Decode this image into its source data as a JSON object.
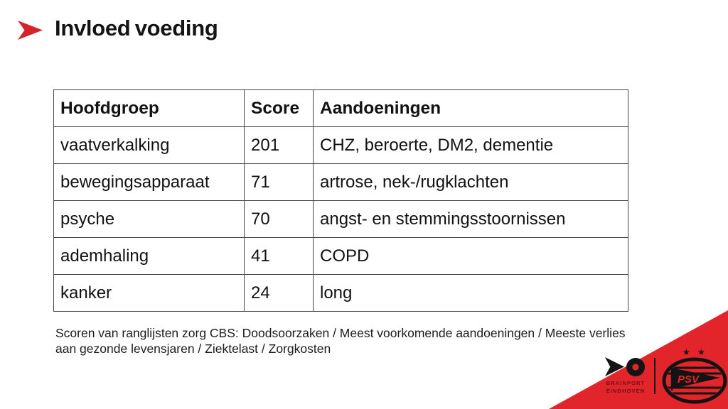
{
  "slide": {
    "title": "Invloed voeding"
  },
  "table": {
    "headers": [
      "Hoofdgroep",
      "Score",
      "Aandoeningen"
    ],
    "rows": [
      [
        "vaatverkalking",
        "201",
        "CHZ, beroerte, DM2, dementie"
      ],
      [
        "bewegingsapparaat",
        "71",
        "artrose, nek-/rugklachten"
      ],
      [
        "psyche",
        "70",
        "angst- en stemmingsstoornissen"
      ],
      [
        "ademhaling",
        "41",
        "COPD"
      ],
      [
        "kanker",
        "24",
        "long"
      ]
    ]
  },
  "footer": {
    "note": "Scoren van ranglijsten zorg CBS: Doodsoorzaken / Meest voorkomende aandoeningen / Meeste verlies aan gezonde levensjaren / Ziektelast / Zorgkosten"
  },
  "branding": {
    "brainport_line1": "BRAINPORT",
    "brainport_line2": "EINDHOVEN",
    "psv_label": "PSV"
  },
  "colors": {
    "accent_red": "#e2242b",
    "chevron_red": "#d5232b",
    "brainport_text": "#6e1216"
  }
}
